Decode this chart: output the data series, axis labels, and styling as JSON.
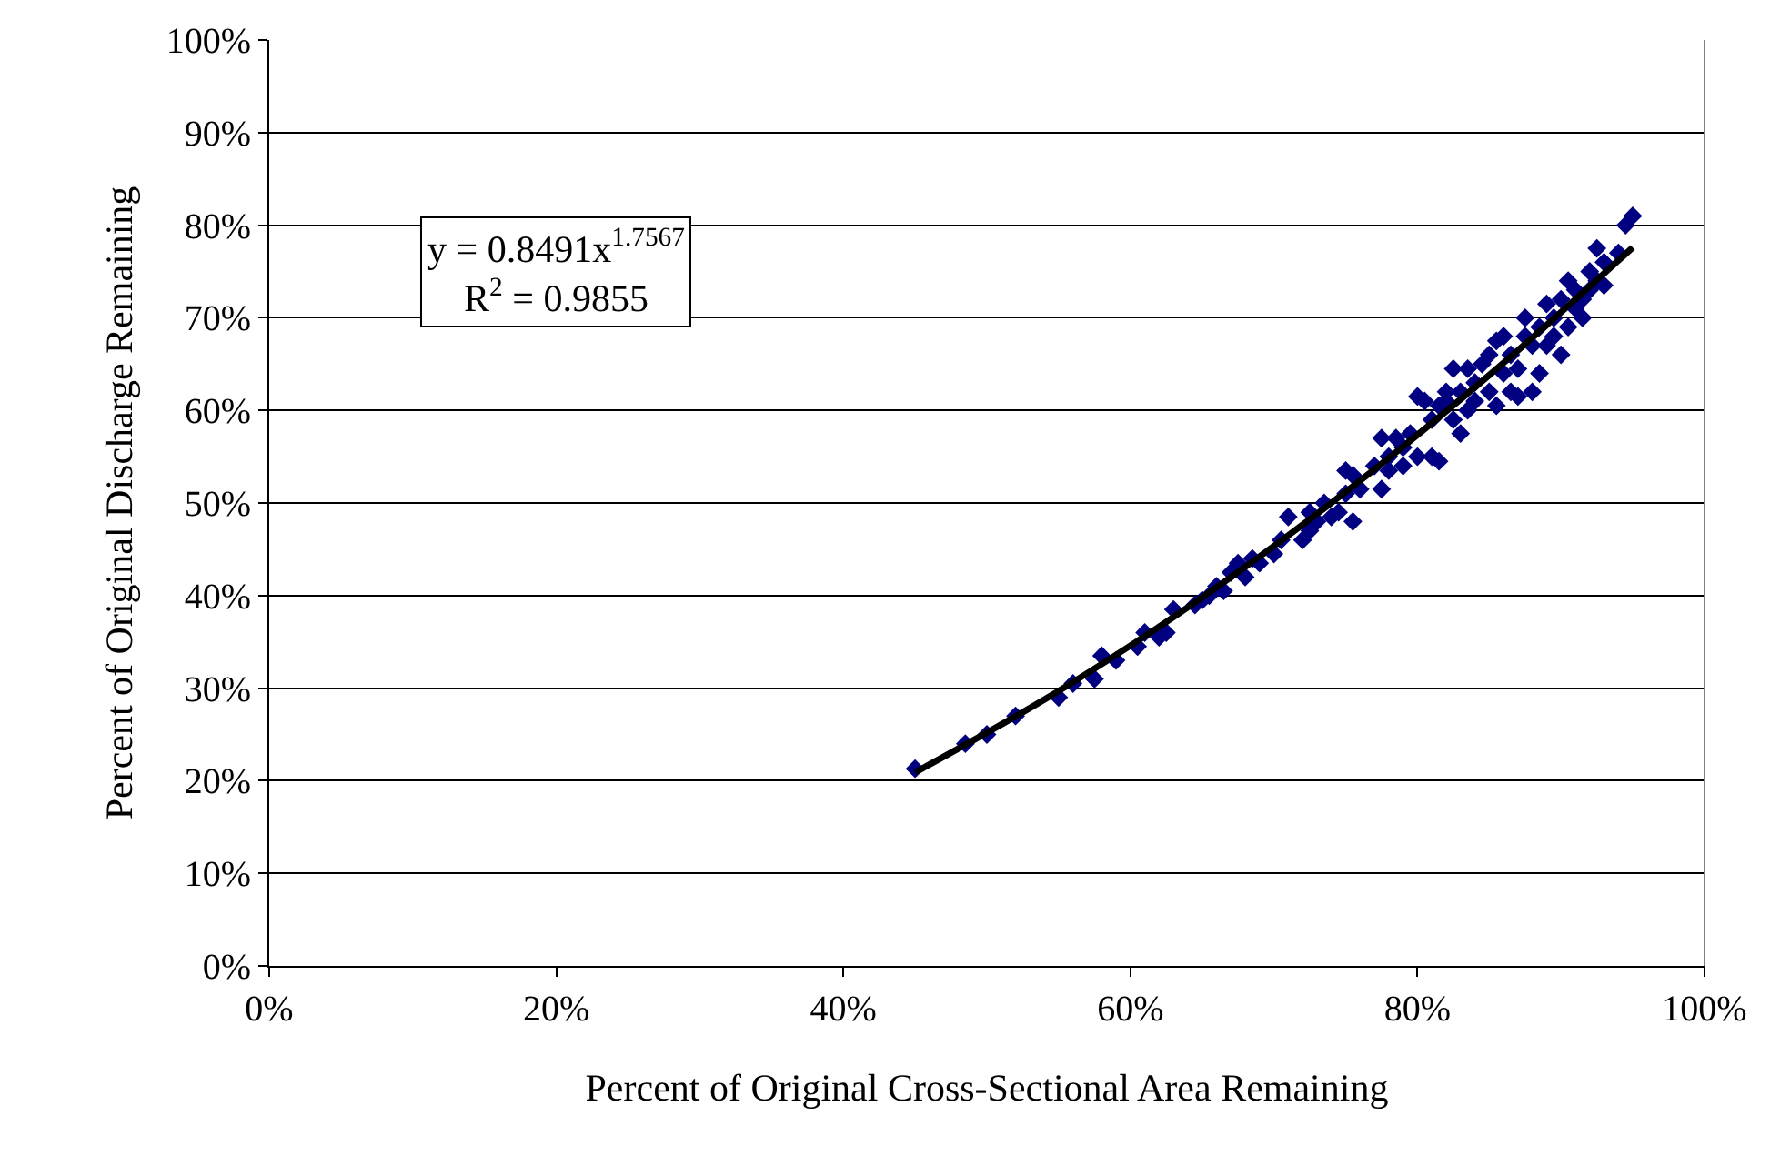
{
  "chart_data": {
    "type": "scatter",
    "xlabel": "Percent of Original Cross-Sectional Area Remaining",
    "ylabel": "Percent of Original Discharge Remaining",
    "xlim": [
      0,
      100
    ],
    "ylim": [
      0,
      100
    ],
    "xticks": [
      {
        "value": 0,
        "label": "0%"
      },
      {
        "value": 20,
        "label": "20%"
      },
      {
        "value": 40,
        "label": "40%"
      },
      {
        "value": 60,
        "label": "60%"
      },
      {
        "value": 80,
        "label": "80%"
      },
      {
        "value": 100,
        "label": "100%"
      }
    ],
    "yticks": [
      {
        "value": 0,
        "label": "0%"
      },
      {
        "value": 10,
        "label": "10%"
      },
      {
        "value": 20,
        "label": "20%"
      },
      {
        "value": 30,
        "label": "30%"
      },
      {
        "value": 40,
        "label": "40%"
      },
      {
        "value": 50,
        "label": "50%"
      },
      {
        "value": 60,
        "label": "60%"
      },
      {
        "value": 70,
        "label": "70%"
      },
      {
        "value": 80,
        "label": "80%"
      },
      {
        "value": 90,
        "label": "90%"
      },
      {
        "value": 100,
        "label": "100%"
      }
    ],
    "grid": "y",
    "annotations": [
      "y = 0.8491x$^{1.7567}$",
      "R$^{2}$ = 0.9855"
    ],
    "series": [
      {
        "marker": "diamond",
        "color": "#000080",
        "x": [
          45,
          48.5,
          50,
          52,
          55,
          56,
          57.5,
          58,
          59,
          60.5,
          61,
          62,
          62.5,
          63,
          64.5,
          65,
          65.5,
          66,
          66.5,
          67,
          67.5,
          68,
          68.5,
          69,
          70,
          70.5,
          71,
          72,
          72.5,
          72.5,
          73,
          73.5,
          74,
          74.5,
          75,
          75,
          75.5,
          75.5,
          76,
          77,
          77.5,
          77.5,
          78,
          78,
          78.5,
          79,
          79,
          79.5,
          80,
          80,
          80.5,
          81,
          81,
          81.5,
          81.5,
          82,
          82,
          82.5,
          82.5,
          83,
          83,
          83.5,
          83.5,
          84,
          84,
          84.5,
          85,
          85,
          85.5,
          85.5,
          86,
          86,
          86.5,
          86.5,
          87,
          87,
          87.5,
          87.5,
          88,
          88,
          88.5,
          88.5,
          89,
          89,
          89.5,
          89.5,
          90,
          90,
          90.5,
          90.5,
          91,
          91,
          91.5,
          91.5,
          92,
          92,
          92.5,
          92.5,
          93,
          93,
          94,
          94.5,
          95
        ],
        "values": [
          21.3,
          24,
          25,
          27,
          29,
          30.5,
          31,
          33.5,
          33,
          34.5,
          36,
          35.5,
          36,
          38.5,
          39,
          39.5,
          40,
          41,
          40.5,
          42.5,
          43.5,
          42,
          44,
          43.5,
          44.5,
          46,
          48.5,
          46,
          47,
          49,
          48,
          50,
          48.5,
          49,
          51,
          53.5,
          48,
          53,
          51.5,
          54,
          51.5,
          57,
          55,
          53.5,
          57,
          56,
          54,
          57.5,
          55,
          61.5,
          61,
          59,
          55,
          54.5,
          60.5,
          62,
          61,
          59,
          64.5,
          62,
          57.5,
          60,
          64.5,
          63,
          61,
          65,
          66,
          62,
          67.5,
          60.5,
          64,
          68,
          66,
          62,
          64.5,
          61.5,
          70,
          68,
          67,
          62,
          69,
          64,
          71.5,
          67,
          70,
          68,
          72,
          66,
          74,
          69,
          73,
          71,
          72,
          70,
          75,
          73,
          77.5,
          74,
          76,
          73.5,
          77,
          80,
          81
        ]
      },
      {
        "type": "line",
        "marker": "none",
        "line_style": "solid",
        "color": "#000000",
        "x": [
          45,
          55,
          65,
          75,
          85,
          95
        ],
        "values": [
          20.9,
          29.7,
          39.8,
          51.2,
          63.8,
          77.6
        ]
      }
    ]
  }
}
